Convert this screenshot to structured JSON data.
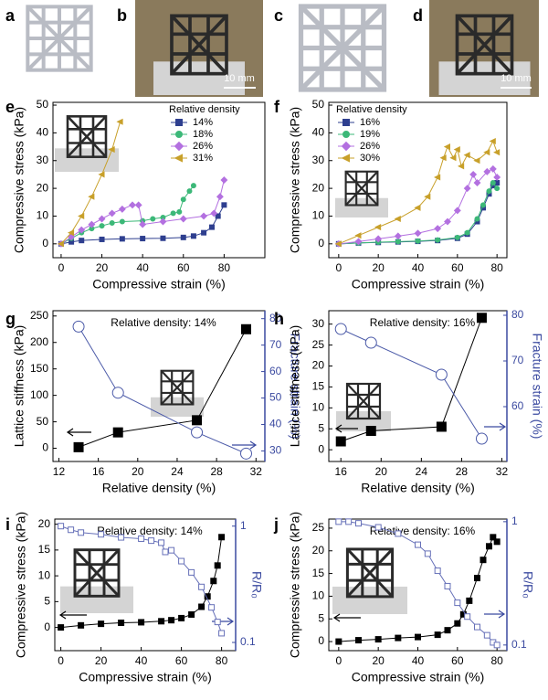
{
  "images": [
    {
      "label": "a"
    },
    {
      "label": "b",
      "scale_bar": "10 mm"
    },
    {
      "label": "c"
    },
    {
      "label": "d",
      "scale_bar": "10 mm"
    }
  ],
  "chart_data": [
    {
      "type": "line",
      "label": "e",
      "xlabel": "Compressive strain (%)",
      "ylabel": "Compressive stress (kPa)",
      "xlim": [
        -4,
        100
      ],
      "xticks": [
        0,
        20,
        40,
        60,
        80
      ],
      "ylim": [
        -5,
        51
      ],
      "yticks": [
        0,
        10,
        20,
        30,
        40,
        50
      ],
      "legend_title": "Relative density",
      "legend": "upper right",
      "series": [
        {
          "name": "14%",
          "color": "#2e3f8f",
          "marker": "square",
          "filled": true,
          "x": [
            0,
            5,
            10,
            20,
            30,
            40,
            50,
            60,
            65,
            70,
            74,
            77,
            80
          ],
          "values": [
            0,
            0.7,
            1.2,
            1.6,
            1.8,
            1.9,
            2.0,
            2.3,
            2.8,
            4,
            6,
            10,
            14
          ]
        },
        {
          "name": "18%",
          "color": "#3cb878",
          "marker": "circle",
          "filled": true,
          "x": [
            0,
            5,
            10,
            15,
            20,
            25,
            30,
            40,
            45,
            50,
            55,
            58,
            60,
            63,
            65
          ],
          "values": [
            0,
            2,
            4,
            5.5,
            6.5,
            7.5,
            8,
            8.3,
            9,
            9.5,
            11,
            11.5,
            16,
            19,
            21
          ]
        },
        {
          "name": "26%",
          "color": "#b370e0",
          "marker": "diamond",
          "filled": true,
          "x": [
            0,
            5,
            10,
            15,
            20,
            25,
            30,
            35,
            38,
            40,
            50,
            60,
            70,
            75,
            78,
            80
          ],
          "values": [
            0,
            2.5,
            5,
            7,
            9,
            11,
            12.5,
            14,
            14,
            7,
            8,
            9,
            10,
            11,
            17,
            23
          ]
        },
        {
          "name": "31%",
          "color": "#c8a02a",
          "marker": "triangle",
          "filled": true,
          "x": [
            0,
            5,
            10,
            15,
            20,
            25,
            29
          ],
          "values": [
            0,
            4,
            10,
            17,
            25,
            34,
            44
          ]
        }
      ]
    },
    {
      "type": "line",
      "label": "f",
      "xlabel": "Compressive strain (%)",
      "ylabel": "Compressive stress (kPa)",
      "xlim": [
        -5,
        85
      ],
      "xticks": [
        0,
        20,
        40,
        60,
        80
      ],
      "ylim": [
        -5,
        51
      ],
      "yticks": [
        0,
        10,
        20,
        30,
        40,
        50
      ],
      "legend_title": "Relative density",
      "legend": "upper left",
      "series": [
        {
          "name": "16%",
          "color": "#2e3f8f",
          "marker": "square",
          "filled": true,
          "x": [
            0,
            10,
            20,
            30,
            40,
            50,
            60,
            65,
            70,
            73,
            76,
            78,
            80
          ],
          "values": [
            0,
            0.3,
            0.5,
            0.7,
            0.9,
            1.2,
            2,
            3.5,
            8,
            13,
            18,
            21,
            22
          ]
        },
        {
          "name": "19%",
          "color": "#3cb878",
          "marker": "circle",
          "filled": true,
          "x": [
            0,
            10,
            20,
            30,
            40,
            50,
            60,
            65,
            70,
            73,
            76,
            78,
            80
          ],
          "values": [
            0,
            0.3,
            0.6,
            0.8,
            1,
            1.4,
            2.3,
            4,
            9,
            14,
            19,
            22,
            20
          ]
        },
        {
          "name": "26%",
          "color": "#b370e0",
          "marker": "diamond",
          "filled": true,
          "x": [
            0,
            10,
            20,
            30,
            40,
            50,
            55,
            60,
            65,
            68,
            70,
            75,
            78,
            80
          ],
          "values": [
            0,
            0.8,
            1.8,
            2.8,
            3.8,
            5.5,
            8,
            12,
            20,
            25,
            22,
            26,
            27,
            24
          ]
        },
        {
          "name": "30%",
          "color": "#c8a02a",
          "marker": "triangle",
          "filled": true,
          "x": [
            0,
            10,
            20,
            30,
            40,
            45,
            50,
            53,
            55,
            58,
            60,
            62,
            65,
            70,
            75,
            78,
            80
          ],
          "values": [
            0,
            3,
            6,
            9,
            13,
            17,
            24,
            31,
            35,
            31,
            34,
            28,
            32,
            30,
            33,
            37,
            33
          ]
        }
      ]
    },
    {
      "type": "line",
      "label": "g",
      "xlabel": "Relative density (%)",
      "ylabel": "Lattice stiffness (kPa)",
      "y2label": "Fracture strain (%)",
      "y2color": "#3b4aa0",
      "annotation": "Relative density: 14%",
      "xlim": [
        11.4,
        32.9
      ],
      "xticks": [
        12,
        16,
        20,
        24,
        28,
        32
      ],
      "ylim": [
        -25,
        260
      ],
      "yticks": [
        0,
        50,
        100,
        150,
        200,
        250
      ],
      "y2lim": [
        26,
        83
      ],
      "y2ticks": [
        30,
        40,
        50,
        60,
        70,
        80
      ],
      "series": [
        {
          "name": "Lattice stiffness",
          "color": "#000000",
          "marker": "square",
          "filled": true,
          "size": 5,
          "x": [
            14,
            18,
            26,
            31
          ],
          "values": [
            2,
            30,
            53,
            225
          ]
        },
        {
          "name": "Fracture strain",
          "color": "#4b5aa8",
          "marker": "circle",
          "filled": false,
          "size": 6,
          "axis": "y2",
          "x": [
            14,
            18,
            26,
            31
          ],
          "values": [
            77,
            52,
            37,
            29
          ]
        }
      ]
    },
    {
      "type": "line",
      "label": "h",
      "xlabel": "Relative density (%)",
      "ylabel": "Lattice stiffness (kPa)",
      "y2label": "Fracture strain (%)",
      "y2color": "#3b4aa0",
      "annotation": "Relative density: 16%",
      "xlim": [
        14.8,
        32.5
      ],
      "xticks": [
        16,
        20,
        24,
        28,
        32
      ],
      "ylim": [
        -2.8,
        33.2
      ],
      "yticks": [
        0,
        5,
        10,
        15,
        20,
        25,
        30
      ],
      "y2lim": [
        48,
        81
      ],
      "y2ticks": [
        60,
        70,
        80
      ],
      "series": [
        {
          "name": "Lattice stiffness",
          "color": "#000000",
          "marker": "square",
          "filled": true,
          "size": 5,
          "x": [
            16,
            19,
            26,
            30
          ],
          "values": [
            2,
            4.5,
            5.5,
            31.5
          ]
        },
        {
          "name": "Fracture strain",
          "color": "#4b5aa8",
          "marker": "circle",
          "filled": false,
          "size": 6,
          "axis": "y2",
          "x": [
            16,
            19,
            26,
            30
          ],
          "values": [
            77,
            74,
            67,
            53
          ]
        }
      ]
    },
    {
      "type": "line",
      "label": "i",
      "xlabel": "Compressive strain (%)",
      "ylabel": "Compressive stress (kPa)",
      "y2label": "R/R₀",
      "y2color": "#3b4aa0",
      "y2log": true,
      "annotation": "Relative density: 14%",
      "xlim": [
        -3,
        87
      ],
      "xticks": [
        0,
        20,
        40,
        60,
        80
      ],
      "ylim": [
        -4.5,
        21
      ],
      "yticks": [
        0,
        5,
        10,
        15,
        20
      ],
      "y2lim": [
        0.085,
        1.15
      ],
      "y2ticks": [
        0.1,
        1
      ],
      "series": [
        {
          "name": "Compressive stress",
          "color": "#000000",
          "marker": "square",
          "filled": true,
          "size": 3,
          "x": [
            0,
            10,
            20,
            30,
            40,
            50,
            55,
            60,
            65,
            70,
            73,
            76,
            78,
            80
          ],
          "values": [
            0,
            0.4,
            0.7,
            0.9,
            1.0,
            1.2,
            1.4,
            1.8,
            2.5,
            4,
            6,
            9,
            12,
            17.5
          ]
        },
        {
          "name": "R/R₀",
          "color": "#6670b8",
          "marker": "square",
          "filled": false,
          "size": 3,
          "axis": "y2",
          "x": [
            0,
            5,
            10,
            20,
            30,
            40,
            45,
            50,
            52,
            55,
            60,
            65,
            70,
            75,
            78,
            80
          ],
          "values": [
            1,
            0.93,
            0.88,
            0.85,
            0.8,
            0.78,
            0.75,
            0.72,
            0.6,
            0.62,
            0.5,
            0.4,
            0.3,
            0.2,
            0.15,
            0.12
          ]
        }
      ]
    },
    {
      "type": "line",
      "label": "j",
      "xlabel": "Compressive strain (%)",
      "ylabel": "Compressive stress (kPa)",
      "y2label": "R/R₀",
      "y2color": "#3b4aa0",
      "y2log": true,
      "annotation": "Relative density: 16%",
      "xlim": [
        -5,
        85
      ],
      "xticks": [
        0,
        20,
        40,
        60,
        80
      ],
      "ylim": [
        -2,
        27
      ],
      "yticks": [
        0,
        5,
        10,
        15,
        20,
        25
      ],
      "y2lim": [
        0.09,
        1.05
      ],
      "y2ticks": [
        0.1,
        1
      ],
      "series": [
        {
          "name": "Compressive stress",
          "color": "#000000",
          "marker": "square",
          "filled": true,
          "size": 3,
          "x": [
            0,
            10,
            20,
            30,
            40,
            50,
            55,
            60,
            63,
            66,
            70,
            73,
            76,
            78,
            80
          ],
          "values": [
            0,
            0.3,
            0.5,
            0.8,
            1,
            1.5,
            2.5,
            4,
            6,
            9,
            14,
            18,
            21,
            23,
            22
          ]
        },
        {
          "name": "R/R₀",
          "color": "#6670b8",
          "marker": "square",
          "filled": false,
          "size": 3,
          "axis": "y2",
          "x": [
            0,
            5,
            10,
            20,
            30,
            40,
            45,
            50,
            55,
            60,
            65,
            70,
            75,
            78,
            80
          ],
          "values": [
            1,
            1,
            0.97,
            0.9,
            0.8,
            0.65,
            0.55,
            0.4,
            0.3,
            0.22,
            0.17,
            0.14,
            0.12,
            0.105,
            0.1
          ]
        }
      ]
    }
  ]
}
